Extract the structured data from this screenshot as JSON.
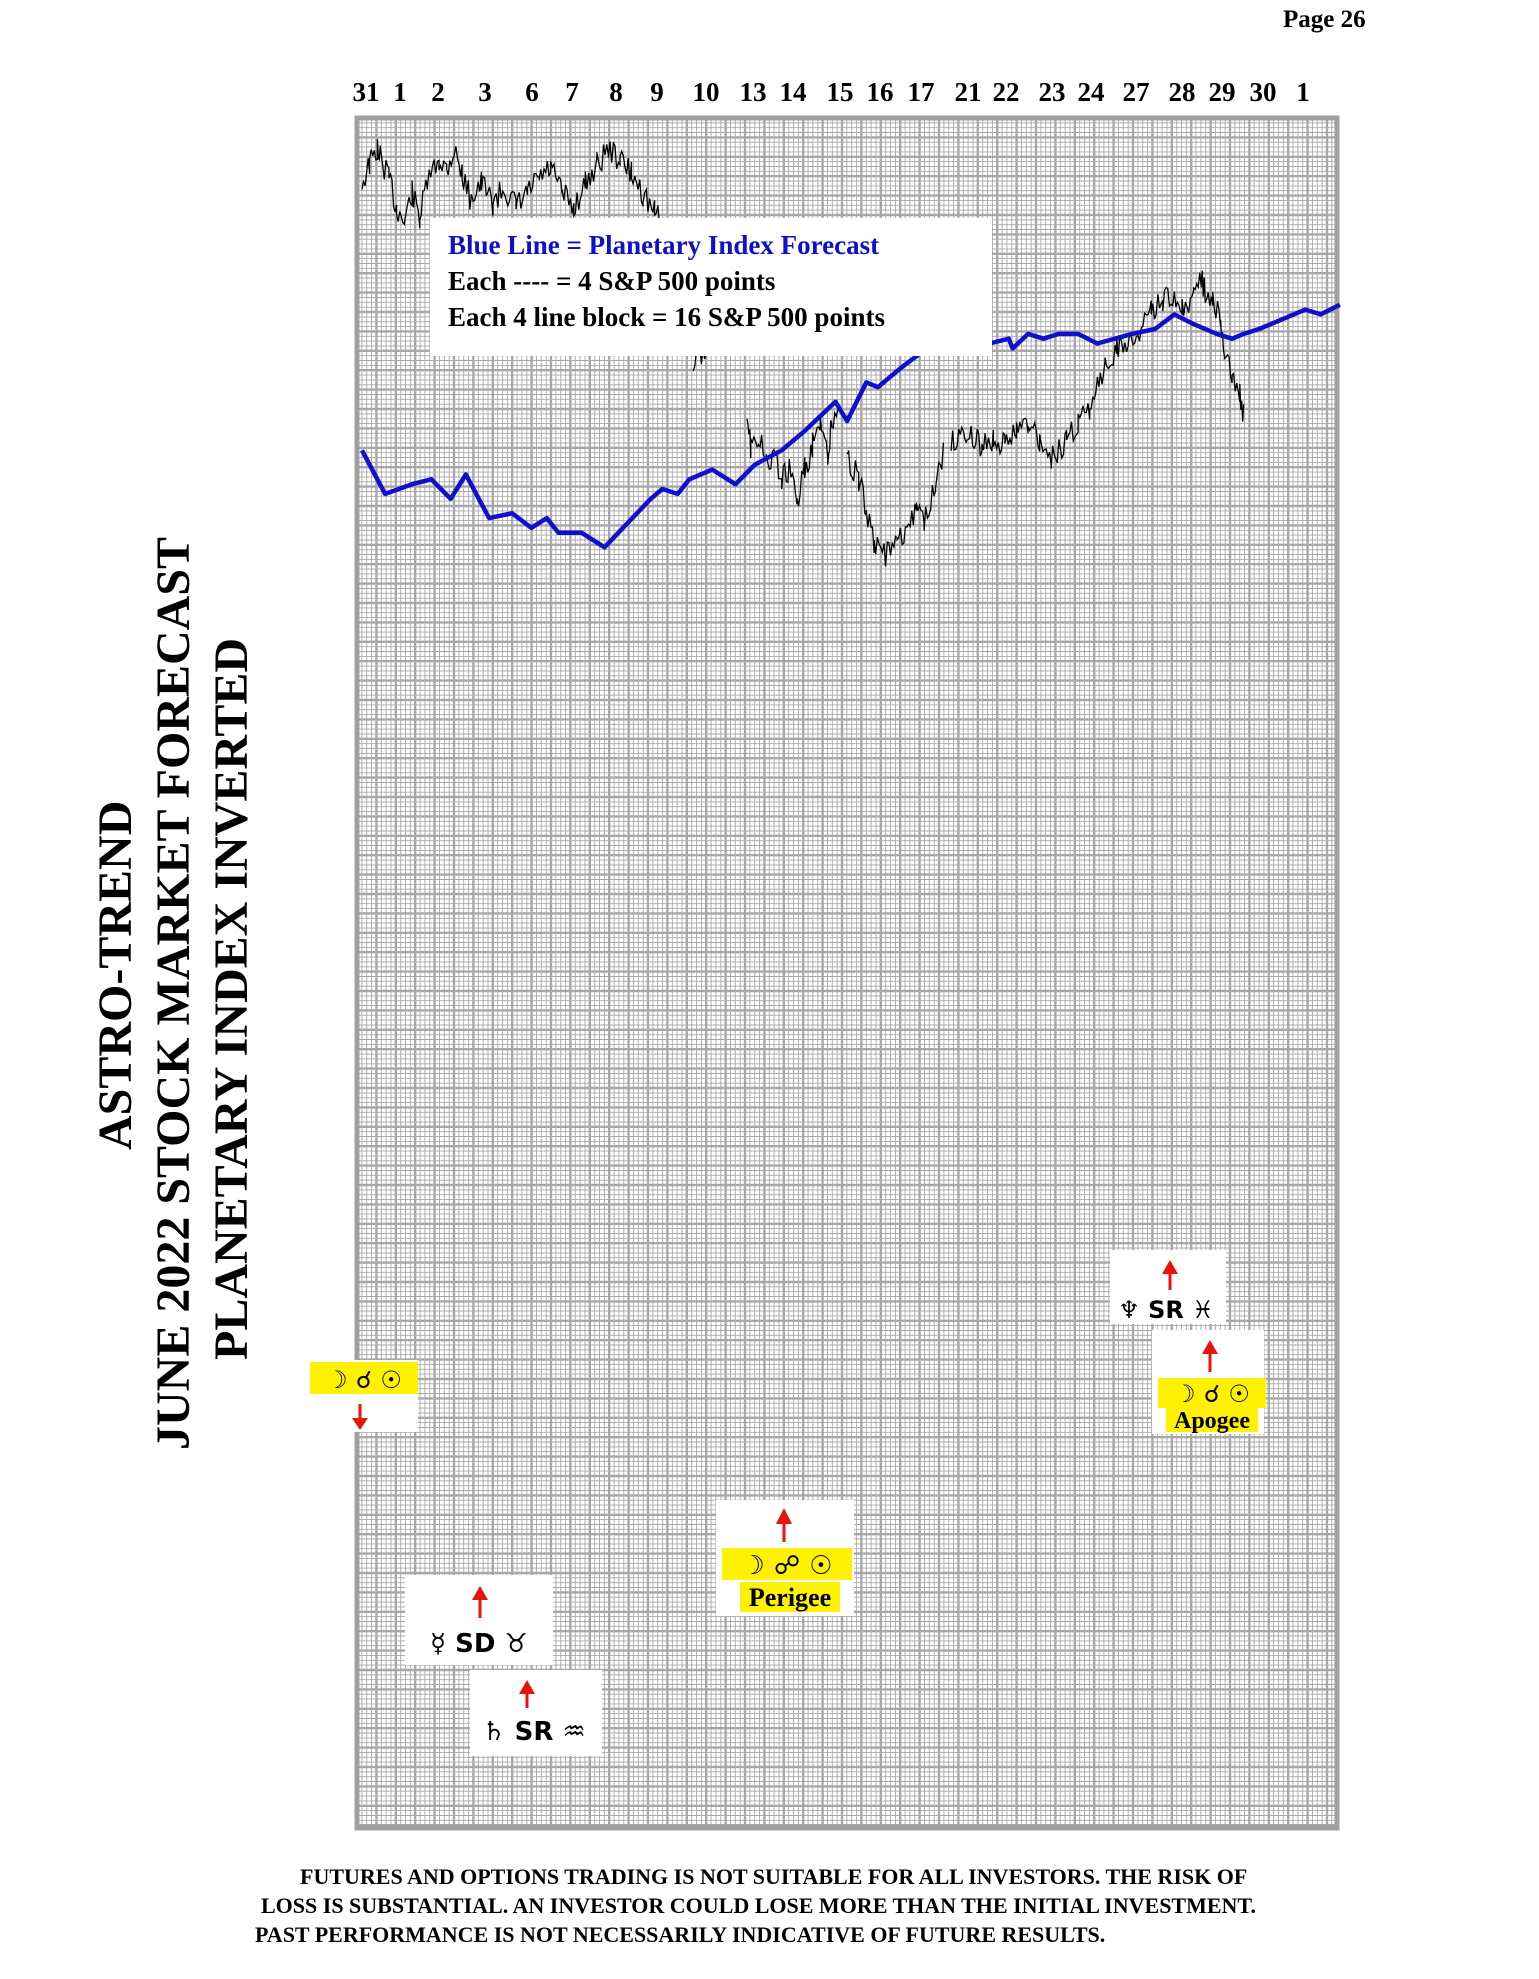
{
  "page": {
    "label": "Page  26"
  },
  "titles": {
    "line1": "ASTRO-TREND",
    "line2": "JUNE 2022  STOCK MARKET FORECAST",
    "line3": "PLANETARY INDEX INVERTED"
  },
  "disclaimer": [
    "FUTURES AND OPTIONS TRADING IS NOT SUITABLE FOR ALL INVESTORS.  THE RISK OF",
    "LOSS IS SUBSTANTIAL.  AN INVESTOR COULD LOSE MORE THAN THE INITIAL INVESTMENT.",
    "PAST PERFORMANCE IS NOT NECESSARILY INDICATIVE OF FUTURE RESULTS."
  ],
  "colors": {
    "forecast": "#1010cc",
    "price": "#000000",
    "grid": "#a8a8a8",
    "highlight": "#fff200",
    "arrow": "#e8140c"
  },
  "chart_data": {
    "type": "line",
    "title": "",
    "xlabel": "",
    "ylabel": "",
    "grid": true,
    "x_labels": [
      "31",
      "1",
      "2",
      "3",
      "6",
      "7",
      "8",
      "9",
      "10",
      "13",
      "14",
      "15",
      "16",
      "17",
      "21",
      "22",
      "23",
      "24",
      "27",
      "28",
      "29",
      "30",
      "1"
    ],
    "legend": {
      "line1": "Blue Line = Planetary Index Forecast",
      "line2": "Each ---- =  4  S&P 500 points",
      "line3": "Each 4 line block =  16  S&P 500 points"
    },
    "series": [
      {
        "name": "Planetary Index Forecast",
        "values": [
          [
            0,
            -65
          ],
          [
            0.6,
            -74
          ],
          [
            1.3,
            -72
          ],
          [
            1.8,
            -71
          ],
          [
            2.3,
            -75
          ],
          [
            2.7,
            -70
          ],
          [
            3.3,
            -79
          ],
          [
            3.9,
            -78
          ],
          [
            4.4,
            -81
          ],
          [
            4.8,
            -79
          ],
          [
            5.1,
            -82
          ],
          [
            5.7,
            -82
          ],
          [
            6.3,
            -85
          ],
          [
            7.5,
            -75
          ],
          [
            7.8,
            -73
          ],
          [
            8.2,
            -74
          ],
          [
            8.5,
            -71
          ],
          [
            9.1,
            -69
          ],
          [
            9.7,
            -72
          ],
          [
            10.2,
            -68
          ],
          [
            10.9,
            -65
          ],
          [
            11.5,
            -61
          ],
          [
            12.3,
            -55
          ],
          [
            12.6,
            -59
          ],
          [
            13.1,
            -51
          ],
          [
            13.4,
            -52
          ],
          [
            14.0,
            -48
          ],
          [
            14.5,
            -45
          ],
          [
            15.1,
            -43
          ],
          [
            15.6,
            -42
          ],
          [
            16.0,
            -41
          ],
          [
            16.3,
            -43
          ],
          [
            16.8,
            -42
          ],
          [
            16.9,
            -44
          ],
          [
            17.3,
            -41
          ],
          [
            17.7,
            -42
          ],
          [
            18.1,
            -41
          ],
          [
            18.6,
            -41
          ],
          [
            19.1,
            -43
          ],
          [
            20.0,
            -41
          ],
          [
            20.6,
            -40
          ],
          [
            21.1,
            -37
          ],
          [
            21.6,
            -39
          ],
          [
            22.2,
            -41
          ],
          [
            22.6,
            -42
          ],
          [
            22.9,
            -41
          ],
          [
            23.3,
            -40
          ],
          [
            23.9,
            -38
          ],
          [
            24.5,
            -36
          ],
          [
            24.9,
            -37
          ],
          [
            25.4,
            -35
          ]
        ]
      },
      {
        "name": "S&P 500 (inverted)",
        "values": [
          [
            0,
            -10
          ],
          [
            0.2,
            -6
          ],
          [
            0.4,
            -3
          ],
          [
            0.5,
            -5
          ],
          [
            0.7,
            -9
          ],
          [
            0.9,
            -15
          ],
          [
            1.1,
            -18
          ],
          [
            1.3,
            -12
          ],
          [
            1.5,
            -17
          ],
          [
            1.7,
            -10
          ],
          [
            2.0,
            -5
          ],
          [
            2.2,
            -7
          ],
          [
            2.4,
            -3
          ],
          [
            2.6,
            -8
          ],
          [
            2.8,
            -13
          ],
          [
            3.1,
            -10
          ],
          [
            3.4,
            -14
          ],
          [
            3.7,
            -11
          ],
          [
            4.0,
            -15
          ],
          [
            4.3,
            -12
          ],
          [
            4.6,
            -9
          ],
          [
            4.9,
            -7
          ],
          [
            5.2,
            -12
          ],
          [
            5.5,
            -15
          ],
          [
            5.8,
            -10
          ],
          [
            6.1,
            -6
          ],
          [
            6.4,
            -3
          ],
          [
            6.7,
            -5
          ],
          [
            7.0,
            -8
          ],
          [
            7.3,
            -12
          ],
          [
            7.6,
            -16
          ],
          [
            7.9,
            -19
          ],
          [
            8.1,
            -23
          ],
          [
            8.2,
            -28
          ],
          [
            8.25,
            -32
          ],
          [
            8.35,
            -42
          ],
          [
            8.6,
            -46
          ],
          [
            8.9,
            -44
          ],
          [
            9.2,
            -42
          ],
          [
            9.4,
            -46
          ],
          [
            10.0,
            -59
          ],
          [
            10.1,
            -64
          ],
          [
            10.3,
            -62
          ],
          [
            10.5,
            -68
          ],
          [
            10.7,
            -66
          ],
          [
            10.9,
            -71
          ],
          [
            11.1,
            -69
          ],
          [
            11.3,
            -76
          ],
          [
            11.5,
            -69
          ],
          [
            11.7,
            -64
          ],
          [
            11.9,
            -60
          ],
          [
            12.1,
            -67
          ],
          [
            12.2,
            -59
          ],
          [
            12.4,
            -57
          ],
          [
            12.6,
            -66
          ],
          [
            12.9,
            -71
          ],
          [
            13.1,
            -77
          ],
          [
            13.3,
            -84
          ],
          [
            13.6,
            -87
          ],
          [
            13.9,
            -84
          ],
          [
            14.2,
            -82
          ],
          [
            14.4,
            -77
          ],
          [
            14.6,
            -80
          ],
          [
            14.9,
            -71
          ],
          [
            15.1,
            -66
          ],
          [
            15.3,
            -63
          ],
          [
            15.7,
            -61
          ],
          [
            16.1,
            -64
          ],
          [
            16.4,
            -63
          ],
          [
            16.7,
            -64
          ],
          [
            17.0,
            -61
          ],
          [
            17.3,
            -59
          ],
          [
            17.6,
            -63
          ],
          [
            17.9,
            -67
          ],
          [
            18.3,
            -63
          ],
          [
            18.6,
            -59
          ],
          [
            18.9,
            -56
          ],
          [
            19.3,
            -48
          ],
          [
            19.6,
            -44
          ],
          [
            19.9,
            -42
          ],
          [
            20.2,
            -40
          ],
          [
            20.5,
            -36
          ],
          [
            20.8,
            -34
          ],
          [
            21.1,
            -33
          ],
          [
            21.3,
            -36
          ],
          [
            21.6,
            -34
          ],
          [
            21.8,
            -29
          ],
          [
            21.9,
            -33
          ],
          [
            22.1,
            -35
          ],
          [
            22.3,
            -38
          ],
          [
            22.4,
            -45
          ],
          [
            22.6,
            -49
          ],
          [
            22.8,
            -54
          ],
          [
            22.9,
            -58
          ]
        ]
      }
    ]
  },
  "annotations": {
    "a1": {
      "glyphs": "☽ ☌ ☉"
    },
    "a2": {
      "glyphs": "☿ SD ♉"
    },
    "a3": {
      "glyphs": "♄ SR ♒"
    },
    "a4": {
      "glyphs": "☽ ☍ ☉",
      "label": "Perigee"
    },
    "a5": {
      "glyphs": "♆ SR ♓"
    },
    "a6": {
      "glyphs": "☽ ☌ ☉",
      "label": "Apogee"
    }
  }
}
